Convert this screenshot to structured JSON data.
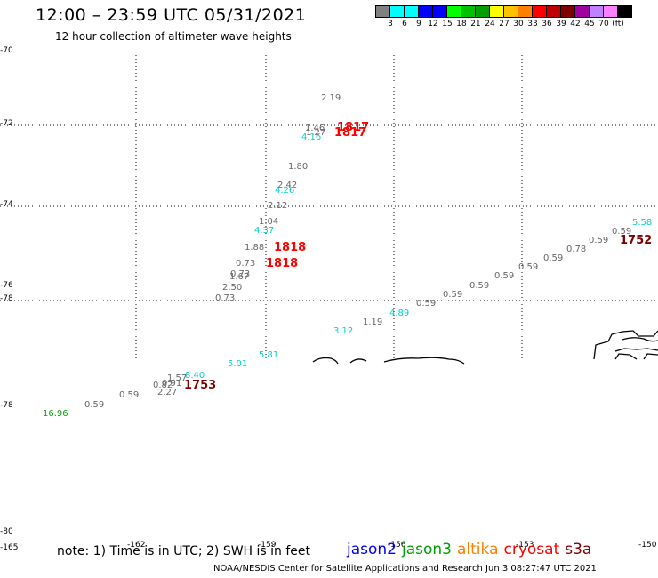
{
  "header": {
    "title": "12:00 – 23:59 UTC 05/31/2021",
    "subtitle": "12 hour collection of altimeter wave heights"
  },
  "legend": {
    "colors": [
      "#808080",
      "#00ffff",
      "#00ffff",
      "#0000ff",
      "#0000ff",
      "#00ff00",
      "#00c000",
      "#00a000",
      "#ffff00",
      "#ffc000",
      "#ff8000",
      "#ff0000",
      "#c00000",
      "#800000",
      "#a000a0",
      "#c080ff",
      "#ff80ff",
      "#000000"
    ],
    "tick_labels": [
      "3",
      "6",
      "9",
      "12",
      "15",
      "18",
      "21",
      "24",
      "27",
      "30",
      "33",
      "36",
      "39",
      "42",
      "45",
      "70",
      "(ft)"
    ]
  },
  "axes": {
    "lat_labels": [
      "-70",
      "-72",
      "-74",
      "-76",
      "-78",
      "-78",
      "-80"
    ],
    "lon_labels": [
      "-165",
      "-162",
      "-159",
      "-156",
      "-153",
      "-150"
    ]
  },
  "observations": [
    {
      "label": "2.19",
      "color": "#666666"
    },
    {
      "label": "1.46",
      "color": "#666666"
    },
    {
      "label": "1.27",
      "color": "#666666"
    },
    {
      "label": "4.16",
      "color": "#00d0d0"
    },
    {
      "label": "1.80",
      "color": "#666666"
    },
    {
      "label": "2.42",
      "color": "#666666"
    },
    {
      "label": "4.26",
      "color": "#00d0d0"
    },
    {
      "label": "2.12",
      "color": "#666666"
    },
    {
      "label": "1.04",
      "color": "#666666"
    },
    {
      "label": "4.37",
      "color": "#00d0d0"
    },
    {
      "label": "1.88",
      "color": "#666666"
    },
    {
      "label": "0.73",
      "color": "#666666"
    },
    {
      "label": "0.73",
      "color": "#666666"
    },
    {
      "label": "1.67",
      "color": "#666666"
    },
    {
      "label": "2.50",
      "color": "#666666"
    },
    {
      "label": "0.73",
      "color": "#666666"
    },
    {
      "label": "5.58",
      "color": "#00d0d0"
    },
    {
      "label": "0.59",
      "color": "#666666"
    },
    {
      "label": "0.59",
      "color": "#666666"
    },
    {
      "label": "0.78",
      "color": "#666666"
    },
    {
      "label": "0.59",
      "color": "#666666"
    },
    {
      "label": "0.59",
      "color": "#666666"
    },
    {
      "label": "0.59",
      "color": "#666666"
    },
    {
      "label": "0.59",
      "color": "#666666"
    },
    {
      "label": "0.59",
      "color": "#666666"
    },
    {
      "label": "0.59",
      "color": "#666666"
    },
    {
      "label": "4.89",
      "color": "#00d0d0"
    },
    {
      "label": "1.19",
      "color": "#666666"
    },
    {
      "label": "3.12",
      "color": "#00d0d0"
    },
    {
      "label": "5.81",
      "color": "#00d0d0"
    },
    {
      "label": "5.01",
      "color": "#00d0d0"
    },
    {
      "label": "1.57",
      "color": "#666666"
    },
    {
      "label": "8.40",
      "color": "#00d0d0"
    },
    {
      "label": "0.82",
      "color": "#666666"
    },
    {
      "label": "0.91",
      "color": "#666666"
    },
    {
      "label": "2.27",
      "color": "#666666"
    },
    {
      "label": "0.59",
      "color": "#666666"
    },
    {
      "label": "0.59",
      "color": "#666666"
    },
    {
      "label": "16.96",
      "color": "#00a000"
    }
  ],
  "time_labels": [
    {
      "label": "1817",
      "color": "#ff0000"
    },
    {
      "label": "1817",
      "color": "#ff0000"
    },
    {
      "label": "1818",
      "color": "#ff0000"
    },
    {
      "label": "1818",
      "color": "#ff0000"
    },
    {
      "label": "1752",
      "color": "#800000"
    },
    {
      "label": "1753",
      "color": "#800000"
    }
  ],
  "footer": {
    "note": "note: 1) Time is in UTC; 2) SWH is in feet",
    "satellites": [
      {
        "name": "jason2",
        "color": "#0000ff"
      },
      {
        "name": "jason3",
        "color": "#00a000"
      },
      {
        "name": "altika",
        "color": "#ff8000"
      },
      {
        "name": "cryosat",
        "color": "#ff0000"
      },
      {
        "name": "s3a",
        "color": "#800000"
      }
    ],
    "credit": "NOAA/NESDIS Center for Satellite Applications and Research    Jun  3 08:27:47 UTC 2021"
  }
}
